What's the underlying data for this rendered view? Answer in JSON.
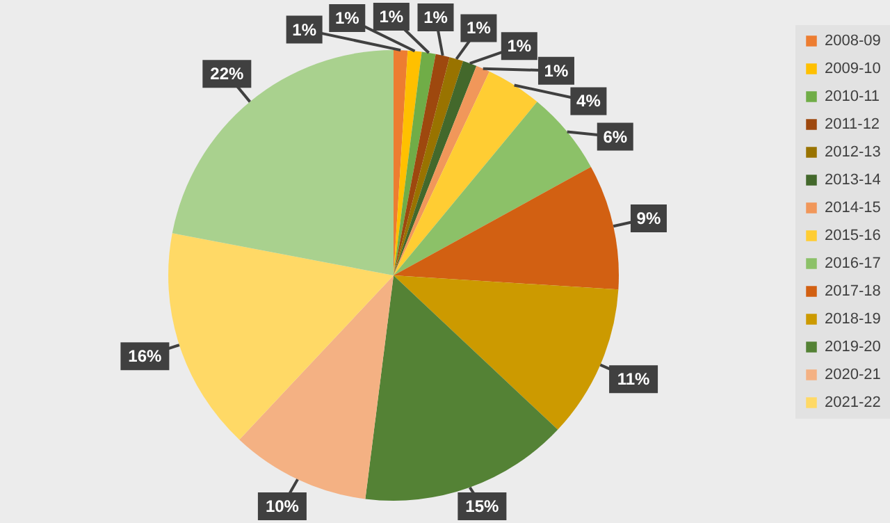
{
  "chart_data": {
    "type": "pie",
    "categories": [
      "2008-09",
      "2009-10",
      "2010-11",
      "2011-12",
      "2012-13",
      "2013-14",
      "2014-15",
      "2015-16",
      "2016-17",
      "2017-18",
      "2018-19",
      "2019-20",
      "2020-21",
      "2021-22",
      null
    ],
    "values": [
      1,
      1,
      1,
      1,
      1,
      1,
      1,
      4,
      6,
      9,
      11,
      15,
      10,
      16,
      22
    ],
    "value_labels": [
      "1%",
      "1%",
      "1%",
      "1%",
      "1%",
      "1%",
      "1%",
      "4%",
      "6%",
      "9%",
      "11%",
      "15%",
      "10%",
      "16%",
      "22%"
    ],
    "colors": [
      "#ed7d31",
      "#ffc000",
      "#70ad47",
      "#9e480e",
      "#997300",
      "#43682b",
      "#f1975a",
      "#ffcd33",
      "#8cc168",
      "#d26012",
      "#cc9a00",
      "#548235",
      "#f4b183",
      "#ffd966",
      "#a9d18e"
    ],
    "legend": "right"
  }
}
